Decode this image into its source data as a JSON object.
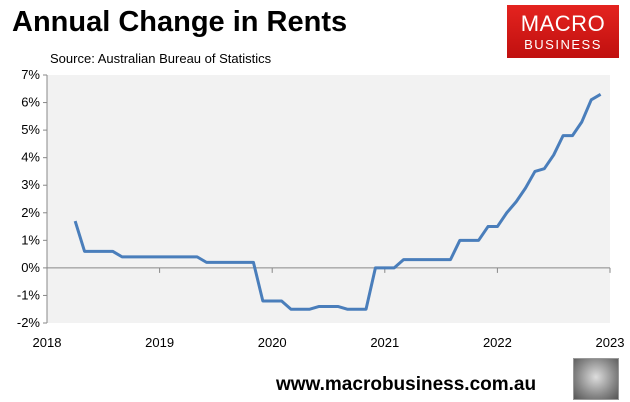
{
  "header": {
    "title": "Annual Change in Rents",
    "source": "Source: Australian Bureau of Statistics"
  },
  "logo": {
    "line1": "MACRO",
    "line2": "BUSINESS"
  },
  "footer": {
    "url": "www.macrobusiness.com.au"
  },
  "chart_data": {
    "type": "line",
    "title": "Annual Change in Rents",
    "xlabel": "",
    "ylabel": "",
    "xlim": [
      2018,
      2023
    ],
    "ylim": [
      -2,
      7
    ],
    "xticks": [
      "2018",
      "2019",
      "2020",
      "2021",
      "2022",
      "2023"
    ],
    "yticks": [
      "-2%",
      "-1%",
      "0%",
      "1%",
      "2%",
      "3%",
      "4%",
      "5%",
      "6%",
      "7%"
    ],
    "grid": false,
    "line_color": "#4a7ebb",
    "start": {
      "year": 2018,
      "month": 4
    },
    "series": [
      {
        "name": "Annual Change in Rents",
        "values": [
          1.7,
          0.6,
          0.6,
          0.6,
          0.6,
          0.4,
          0.4,
          0.4,
          0.4,
          0.4,
          0.4,
          0.4,
          0.4,
          0.4,
          0.2,
          0.2,
          0.2,
          0.2,
          0.2,
          0.2,
          -1.2,
          -1.2,
          -1.2,
          -1.5,
          -1.5,
          -1.5,
          -1.4,
          -1.4,
          -1.4,
          -1.5,
          -1.5,
          -1.5,
          0.0,
          0.0,
          0.0,
          0.3,
          0.3,
          0.3,
          0.3,
          0.3,
          0.3,
          1.0,
          1.0,
          1.0,
          1.5,
          1.5,
          2.0,
          2.4,
          2.9,
          3.5,
          3.6,
          4.1,
          4.8,
          4.8,
          5.3,
          6.1,
          6.3
        ]
      }
    ]
  }
}
